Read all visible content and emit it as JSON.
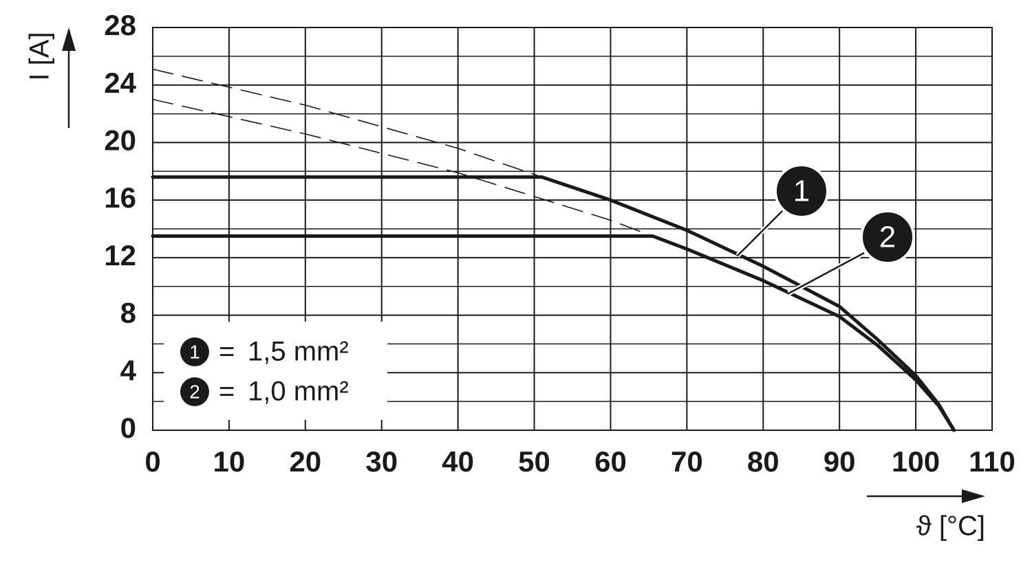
{
  "chart_data": {
    "type": "line",
    "x_label": "ϑ [°C]",
    "y_label": "I [A]",
    "xlim": [
      0,
      110
    ],
    "xticks": [
      0,
      10,
      20,
      30,
      40,
      50,
      60,
      70,
      80,
      90,
      100,
      110
    ],
    "ylim": [
      0,
      28
    ],
    "yticks": [
      0,
      4,
      8,
      12,
      16,
      20,
      24,
      28
    ],
    "yminor": [
      2,
      6,
      10,
      14,
      18,
      22,
      26
    ],
    "grid": true,
    "legend": "lower left",
    "legend_separator": "=",
    "series": [
      {
        "name": "1,5 mm²",
        "marker": "1",
        "color": "#1a1a1a",
        "style": "solid",
        "x": [
          0,
          51,
          60,
          70,
          80,
          90,
          95,
          100,
          103,
          105
        ],
        "values": [
          17.6,
          17.6,
          16.0,
          13.9,
          11.4,
          8.6,
          6.3,
          3.8,
          1.8,
          0
        ]
      },
      {
        "name": "1,0 mm²",
        "marker": "2",
        "color": "#1a1a1a",
        "style": "solid",
        "x": [
          0,
          65.5,
          70,
          80,
          90,
          95,
          100,
          103,
          105
        ],
        "values": [
          13.5,
          13.5,
          12.6,
          10.4,
          7.9,
          5.9,
          3.5,
          1.7,
          0
        ]
      },
      {
        "color": "#1a1a1a",
        "style": "dashed",
        "x": [
          0,
          20,
          40,
          51
        ],
        "values": [
          25.1,
          22.6,
          19.6,
          17.6
        ]
      },
      {
        "color": "#1a1a1a",
        "style": "dashed",
        "x": [
          0,
          20,
          40,
          60,
          65.5
        ],
        "values": [
          23.0,
          20.6,
          17.9,
          14.6,
          13.5
        ]
      }
    ]
  }
}
